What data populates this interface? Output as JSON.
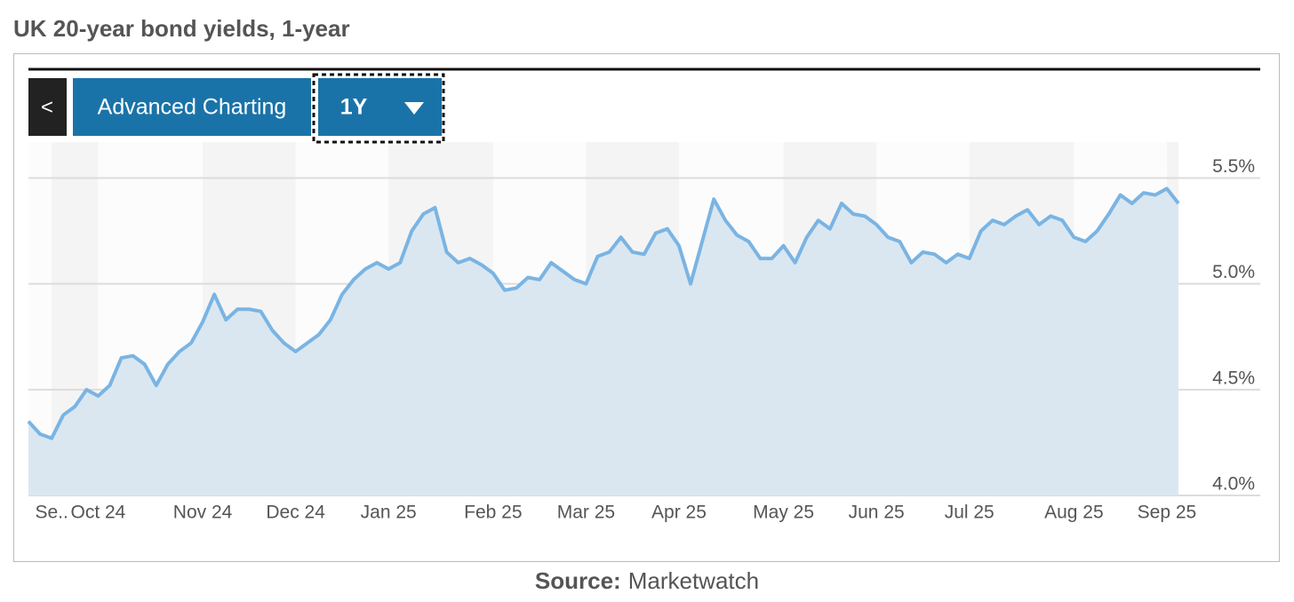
{
  "chart_data": {
    "type": "area",
    "title": "UK 20-year bond yields, 1-year",
    "buttons": {
      "back": "<",
      "advanced": "Advanced Charting",
      "range": "1Y"
    },
    "source": {
      "label": "Source:",
      "name": "Marketwatch"
    },
    "color": "#7ab4e3",
    "fill": "#dae7f1",
    "categories": [
      null,
      null,
      "Se..",
      null,
      null,
      null,
      "Oct 24",
      null,
      null,
      null,
      null,
      null,
      null,
      null,
      null,
      "Nov 24",
      null,
      null,
      null,
      null,
      null,
      null,
      null,
      "Dec 24",
      null,
      null,
      null,
      null,
      null,
      null,
      null,
      "Jan 25",
      null,
      null,
      null,
      null,
      null,
      null,
      null,
      null,
      "Feb 25",
      null,
      null,
      null,
      null,
      null,
      null,
      null,
      "Mar 25",
      null,
      null,
      null,
      null,
      null,
      null,
      null,
      "Apr 25",
      null,
      null,
      null,
      null,
      null,
      null,
      null,
      null,
      "May 25",
      null,
      null,
      null,
      null,
      null,
      null,
      null,
      "Jun 25",
      null,
      null,
      null,
      null,
      null,
      null,
      null,
      "Jul 25",
      null,
      null,
      null,
      null,
      null,
      null,
      null,
      null,
      "Aug 25",
      null,
      null,
      null,
      null,
      null,
      null,
      null,
      "Sep 25",
      null
    ],
    "values": [
      4.35,
      4.29,
      4.27,
      4.38,
      4.42,
      4.5,
      4.47,
      4.52,
      4.65,
      4.66,
      4.62,
      4.52,
      4.62,
      4.68,
      4.72,
      4.82,
      4.95,
      4.83,
      4.88,
      4.88,
      4.87,
      4.78,
      4.72,
      4.68,
      4.72,
      4.76,
      4.83,
      4.95,
      5.02,
      5.07,
      5.1,
      5.07,
      5.1,
      5.25,
      5.33,
      5.36,
      5.15,
      5.1,
      5.12,
      5.09,
      5.05,
      4.97,
      4.98,
      5.03,
      5.02,
      5.1,
      5.06,
      5.02,
      5.0,
      5.13,
      5.15,
      5.22,
      5.15,
      5.14,
      5.24,
      5.26,
      5.18,
      5.0,
      5.2,
      5.4,
      5.3,
      5.23,
      5.2,
      5.12,
      5.12,
      5.18,
      5.1,
      5.22,
      5.3,
      5.26,
      5.38,
      5.33,
      5.32,
      5.28,
      5.22,
      5.2,
      5.1,
      5.15,
      5.14,
      5.1,
      5.14,
      5.12,
      5.25,
      5.3,
      5.28,
      5.32,
      5.35,
      5.28,
      5.32,
      5.3,
      5.22,
      5.2,
      5.25,
      5.33,
      5.42,
      5.38,
      5.43,
      5.42,
      5.45,
      5.38
    ],
    "ylim": [
      4.0,
      5.67
    ],
    "yticks": [
      {
        "value": 4.0,
        "label": "4.0%"
      },
      {
        "value": 4.5,
        "label": "4.5%"
      },
      {
        "value": 5.0,
        "label": "5.0%"
      },
      {
        "value": 5.5,
        "label": "5.5%"
      }
    ],
    "grid": true
  }
}
